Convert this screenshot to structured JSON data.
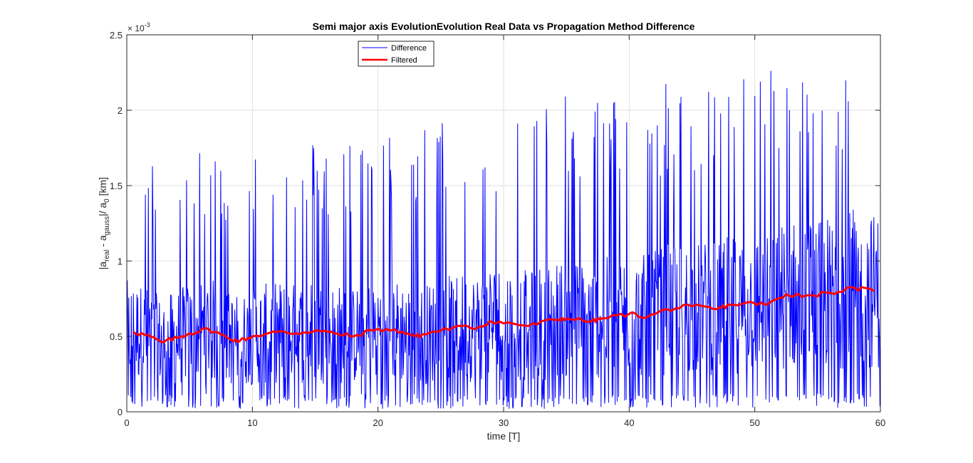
{
  "chart_data": {
    "type": "line",
    "title": "Semi major axis EvolutionEvolution Real Data vs  Propagation Method Difference",
    "xlabel": "time [T]",
    "ylabel_parts": {
      "a1": "|a",
      "sub1": "real",
      "a2": " - a",
      "sub2": "gauss",
      "a3": "|/ a",
      "sub3": "0",
      "a4": " [km]"
    },
    "y_exponent_base": "× 10",
    "y_exponent_power": "-3",
    "xlim": [
      0,
      60
    ],
    "ylim": [
      0,
      2.5
    ],
    "y_scale_factor": 0.001,
    "xticks": [
      0,
      10,
      20,
      30,
      40,
      50,
      60
    ],
    "xtick_labels": [
      "0",
      "10",
      "20",
      "30",
      "40",
      "50",
      "60"
    ],
    "yticks": [
      0,
      0.5,
      1,
      1.5,
      2,
      2.5
    ],
    "ytick_labels": [
      "0",
      "0.5",
      "1",
      "1.5",
      "2",
      "2.5"
    ],
    "grid": true,
    "legend_position": "top-center",
    "series": [
      {
        "name": "Difference",
        "color": "#0000ff",
        "style": "oscillating difference signal, 0 to ~2.4 ×10^-3, peaks growing with time",
        "envelope": {
          "x": [
            0,
            10,
            20,
            30,
            40,
            50,
            60
          ],
          "peak": [
            1.55,
            1.7,
            1.75,
            1.95,
            2.05,
            2.2,
            2.3
          ],
          "min": [
            0.0,
            0.0,
            0.0,
            0.0,
            0.0,
            0.0,
            0.0
          ]
        }
      },
      {
        "name": "Filtered",
        "color": "#ff0000",
        "x": [
          0.5,
          1.5,
          2.8,
          4,
          5,
          6.5,
          8,
          9,
          10,
          12,
          13.5,
          15,
          16.5,
          18,
          20,
          22,
          23,
          24,
          26,
          28,
          29,
          31,
          32,
          34,
          35,
          37,
          38,
          40,
          41.5,
          43,
          45,
          47,
          48,
          50,
          51,
          52.5,
          54,
          56,
          58,
          59.5
        ],
        "y": [
          0.53,
          0.51,
          0.46,
          0.49,
          0.52,
          0.55,
          0.49,
          0.47,
          0.5,
          0.53,
          0.52,
          0.54,
          0.52,
          0.5,
          0.55,
          0.53,
          0.5,
          0.52,
          0.56,
          0.56,
          0.6,
          0.58,
          0.57,
          0.61,
          0.62,
          0.6,
          0.62,
          0.65,
          0.63,
          0.68,
          0.7,
          0.68,
          0.71,
          0.72,
          0.71,
          0.78,
          0.77,
          0.79,
          0.82,
          0.8
        ]
      }
    ]
  }
}
